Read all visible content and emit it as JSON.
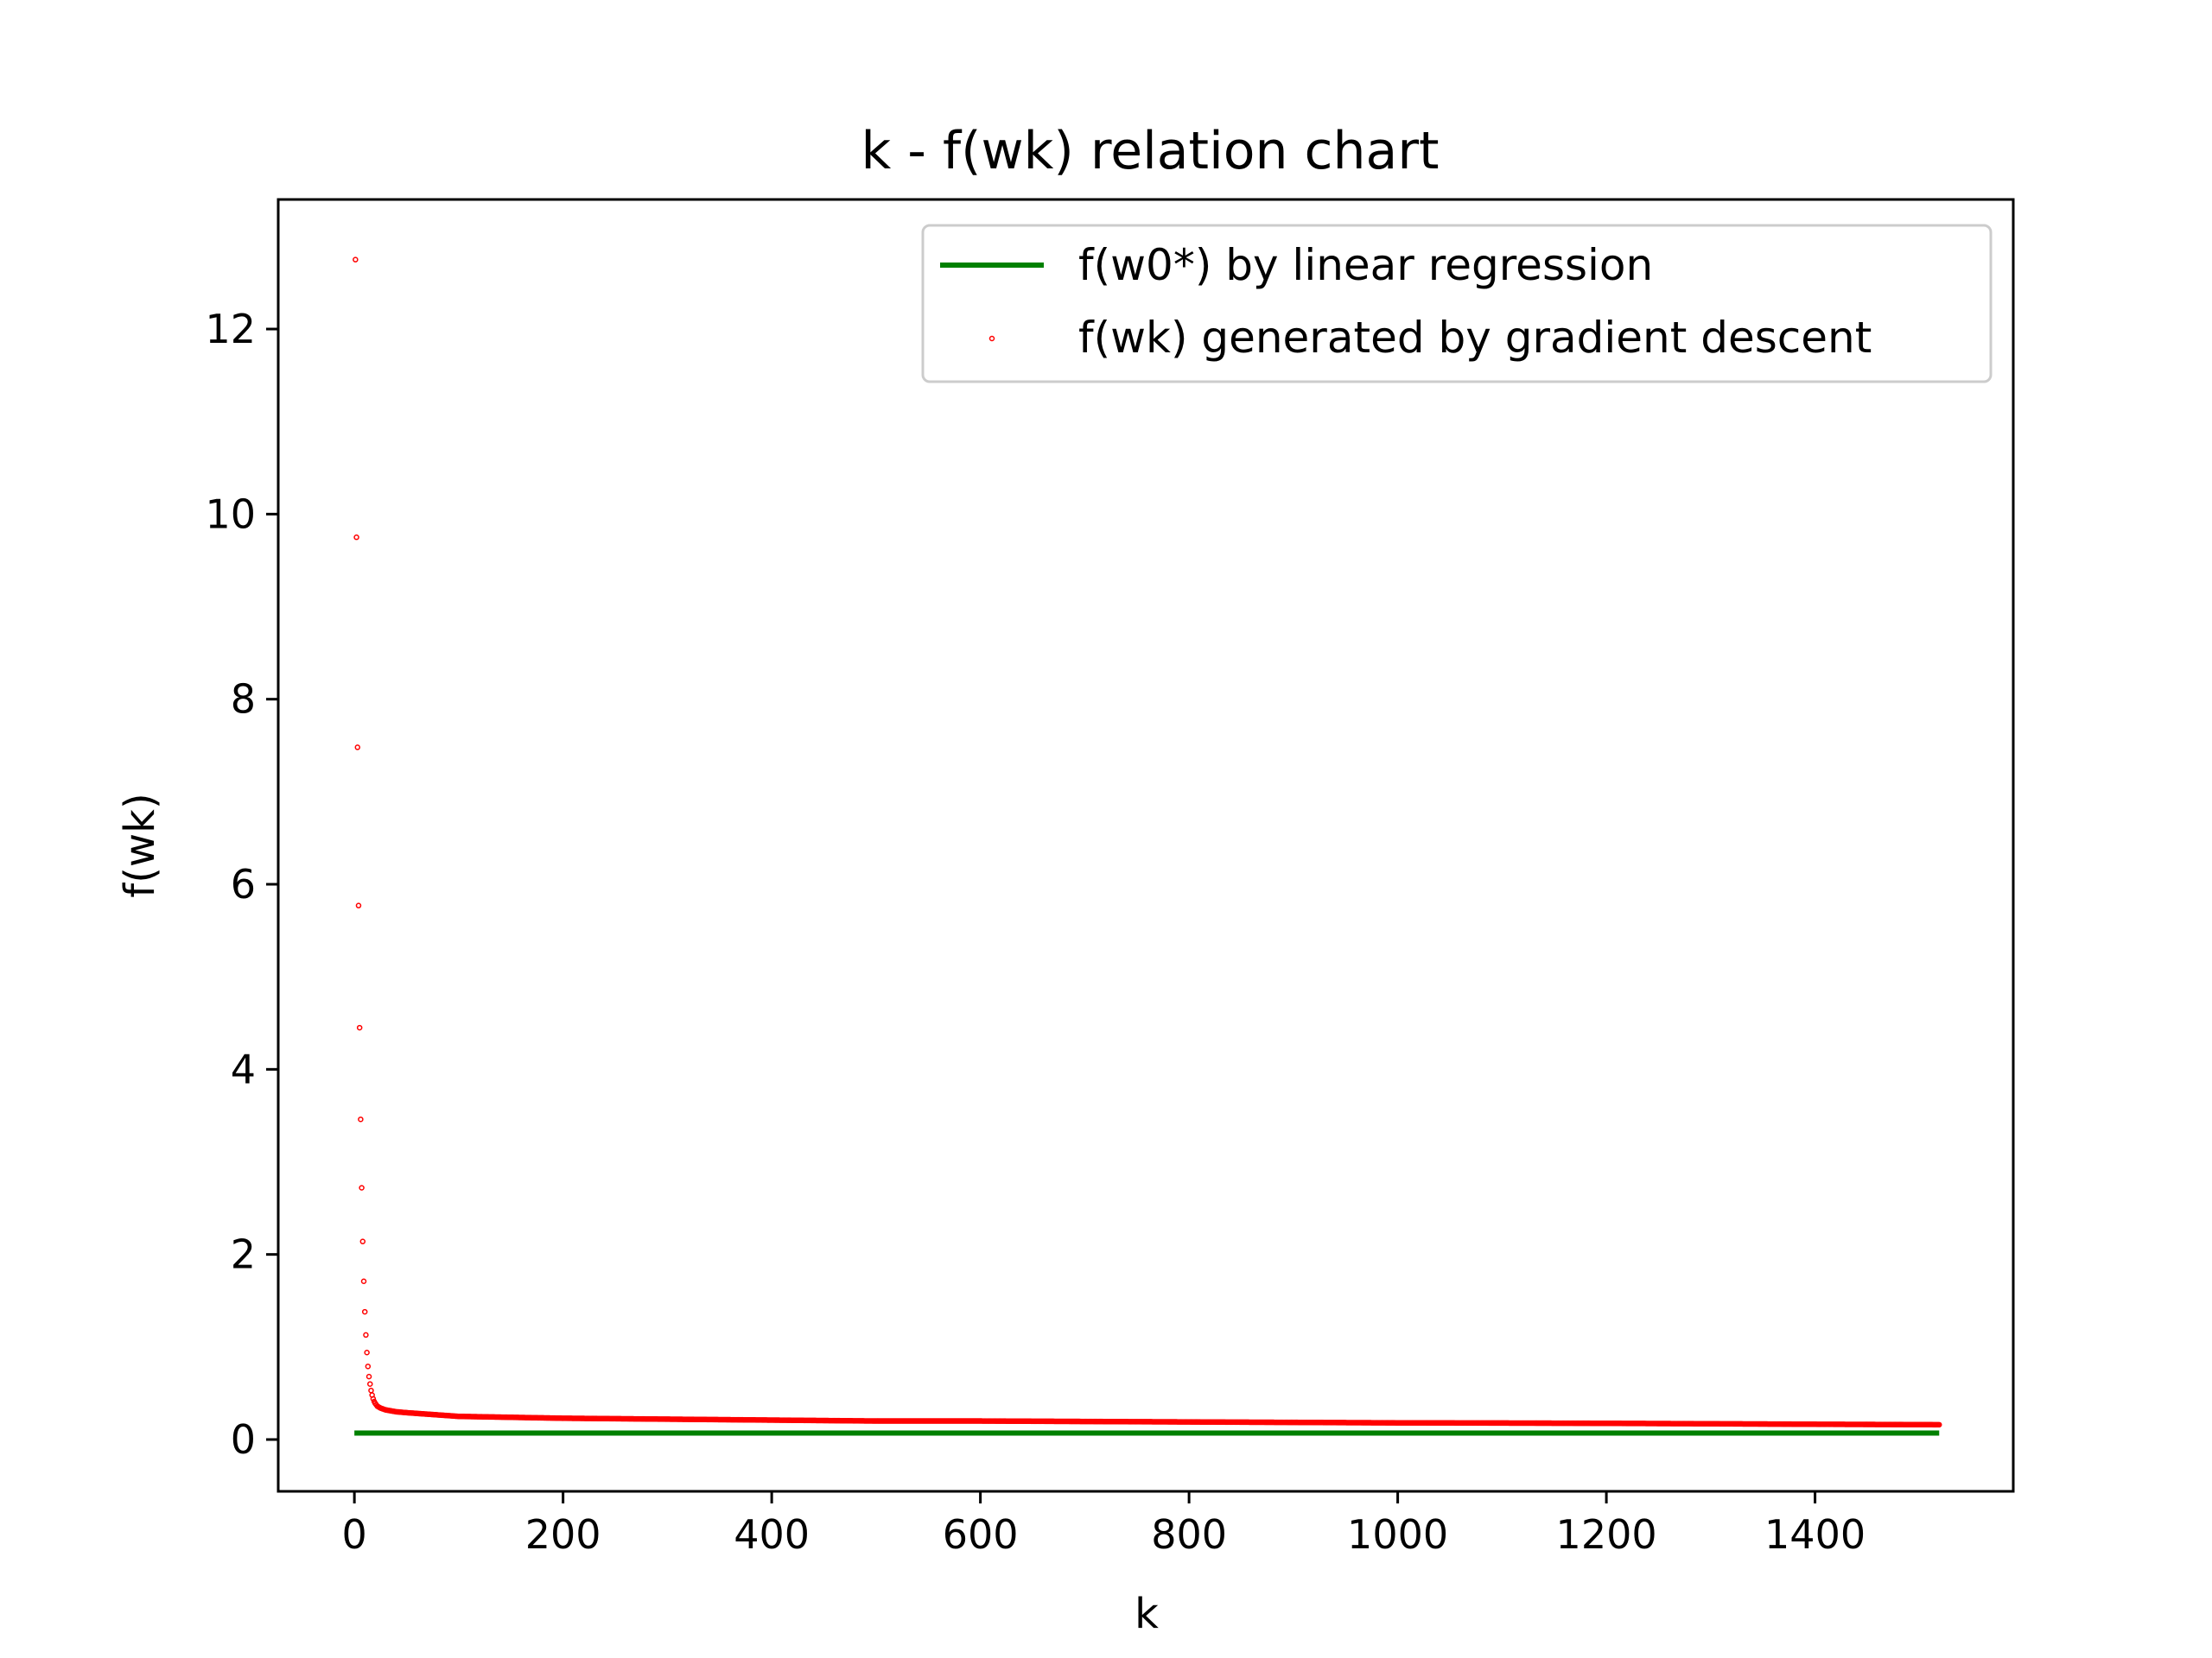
{
  "chart_data": {
    "type": "scatter",
    "title": "k - f(wk) relation chart",
    "xlabel": "k",
    "ylabel": "f(wk)",
    "xlim": [
      -73,
      1590
    ],
    "ylim": [
      -0.56,
      13.4
    ],
    "x_ticks": [
      0,
      200,
      400,
      600,
      800,
      1000,
      1200,
      1400
    ],
    "y_ticks": [
      0,
      2,
      4,
      6,
      8,
      10,
      12
    ],
    "grid": false,
    "legend_position": "top-right",
    "colors": {
      "reference_line": "#008000",
      "points": "#ff0000"
    },
    "series": [
      {
        "name": "f(w0*) by linear regression",
        "kind": "line",
        "x": [
          0,
          1519
        ],
        "y": [
          0.07,
          0.07
        ]
      },
      {
        "name": "f(wk) generated by gradient descent",
        "kind": "scatter",
        "k_max": 1519,
        "x": [
          1,
          2,
          3,
          4,
          5,
          6,
          7,
          8,
          9,
          10,
          11,
          12,
          13,
          14,
          15,
          16,
          17,
          18,
          19,
          20,
          22,
          25,
          30,
          40,
          50,
          75,
          100,
          150,
          200,
          300,
          400,
          500,
          600,
          700,
          800,
          900,
          1000,
          1100,
          1200,
          1300,
          1400,
          1519
        ],
        "y": [
          12.75,
          9.75,
          7.48,
          5.77,
          4.45,
          3.46,
          2.72,
          2.14,
          1.71,
          1.38,
          1.13,
          0.94,
          0.79,
          0.68,
          0.6,
          0.53,
          0.48,
          0.44,
          0.41,
          0.39,
          0.36,
          0.34,
          0.32,
          0.3,
          0.29,
          0.27,
          0.25,
          0.24,
          0.23,
          0.22,
          0.21,
          0.2,
          0.2,
          0.195,
          0.19,
          0.185,
          0.18,
          0.178,
          0.175,
          0.17,
          0.165,
          0.16
        ]
      }
    ]
  }
}
